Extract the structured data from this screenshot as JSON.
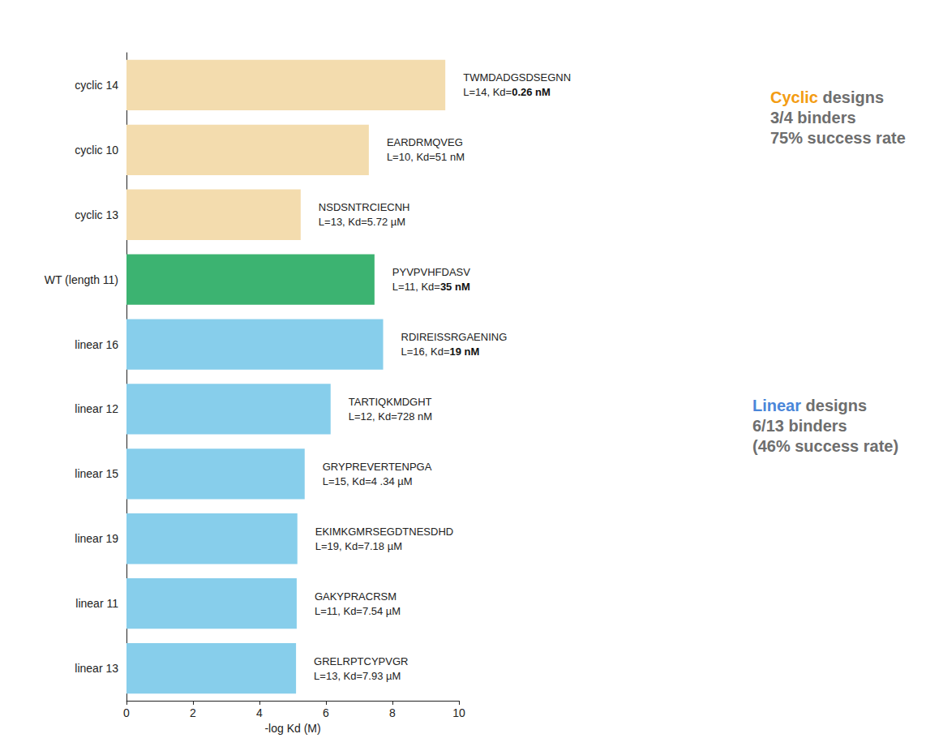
{
  "chart_data": {
    "type": "bar",
    "orientation": "horizontal",
    "categories": [
      "cyclic 14",
      "cyclic 10",
      "cyclic 13",
      "WT (length 11)",
      "linear 16",
      "linear 12",
      "linear 15",
      "linear 19",
      "linear 11",
      "linear 13"
    ],
    "values": [
      9.59,
      7.29,
      5.24,
      7.46,
      7.72,
      6.14,
      5.36,
      5.14,
      5.12,
      5.1
    ],
    "colors": [
      "#f3dcae",
      "#f3dcae",
      "#f3dcae",
      "#3cb371",
      "#87ceeb",
      "#87ceeb",
      "#87ceeb",
      "#87ceeb",
      "#87ceeb",
      "#87ceeb"
    ],
    "xlabel": "-log Kd (M)",
    "xlim": [
      0,
      10
    ],
    "xticks": [
      0,
      2,
      4,
      6,
      8,
      10
    ],
    "grid": false,
    "annotations": [
      {
        "sequence": "TWMDADGSDSEGNN",
        "prefix": "L=14, Kd=",
        "kd": "0.26 nM",
        "bold": true
      },
      {
        "sequence": "EARDRMQVEG",
        "prefix": "L=10, Kd=",
        "kd": "51 nM",
        "bold": false
      },
      {
        "sequence": "NSDSNTRCIECNH",
        "prefix": "L=13, Kd=",
        "kd": "5.72 µM",
        "bold": false
      },
      {
        "sequence": "PYVPVHFDASV",
        "prefix": "L=11, Kd=",
        "kd": "35 nM",
        "bold": true
      },
      {
        "sequence": "RDIREISSRGAENING",
        "prefix": "L=16, Kd=",
        "kd": "19 nM",
        "bold": true
      },
      {
        "sequence": "TARTIQKMDGHT",
        "prefix": "L=12, Kd=",
        "kd": "728 nM",
        "bold": false
      },
      {
        "sequence": "GRYPREVERTENPGA",
        "prefix": "L=15, Kd=",
        "kd": "4 .34 µM",
        "bold": false
      },
      {
        "sequence": "EKIMKGMRSEGDTNESDHD",
        "prefix": "L=19, Kd=",
        "kd": "7.18 µM",
        "bold": false
      },
      {
        "sequence": "GAKYPRACRSM",
        "prefix": "L=11, Kd=",
        "kd": "7.54 µM",
        "bold": false
      },
      {
        "sequence": "GRELRPTCYPVGR",
        "prefix": "L=13, Kd=",
        "kd": "7.93 µM",
        "bold": false
      }
    ],
    "side_notes": [
      {
        "highlight": "Cyclic",
        "rest": " designs",
        "lines": [
          "3/4 binders",
          "75% success rate"
        ],
        "color": "#f39c12"
      },
      {
        "highlight": "Linear",
        "rest": " designs",
        "lines": [
          "6/13 binders",
          "(46% success rate)"
        ],
        "color": "#4a86d9"
      }
    ]
  }
}
